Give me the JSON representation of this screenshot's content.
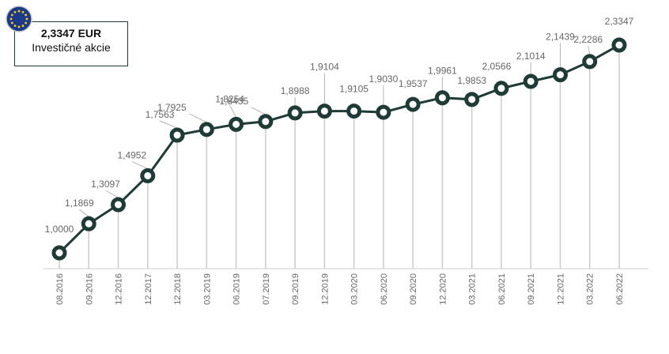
{
  "info": {
    "value": "2,3347 EUR",
    "label": "Investičné akcie",
    "flag_icon": "eu-flag-icon"
  },
  "colors": {
    "line": "#1f3b35",
    "marker_fill": "#ffffff",
    "grid": "#cccccc",
    "labels": "#666666"
  },
  "chart_data": {
    "type": "line",
    "title": "",
    "xlabel": "",
    "ylabel": "",
    "categories": [
      "08.2016",
      "09.2016",
      "12.2016",
      "12.2017",
      "12.2018",
      "03.2019",
      "06.2019",
      "07.2019",
      "09.2019",
      "12.2019",
      "03.2020",
      "06.2020",
      "09.2020",
      "12.2020",
      "03.2021",
      "06.2021",
      "09.2021",
      "12.2021",
      "03.2022",
      "06.2022"
    ],
    "values": [
      1.0,
      1.1869,
      1.3097,
      1.4952,
      1.7563,
      1.7925,
      1.8254,
      1.8435,
      1.8988,
      1.9104,
      1.9105,
      1.903,
      1.9537,
      1.9961,
      1.9853,
      2.0566,
      2.1014,
      2.1439,
      2.2286,
      2.3347
    ],
    "value_labels": [
      "1,0000",
      "1,1869",
      "1,3097",
      "1,4952",
      "1,7563",
      "1,7925",
      "1,8254",
      "1,8435",
      "1,8988",
      "1,9104",
      "1,9105",
      "1,9030",
      "1,9537",
      "1,9961",
      "1,9853",
      "2,0566",
      "2,1014",
      "2,1439",
      "2,2286",
      "2,3347"
    ],
    "ylim": [
      1.0,
      2.3347
    ],
    "grid": "vertical drop lines",
    "legend": "none"
  }
}
